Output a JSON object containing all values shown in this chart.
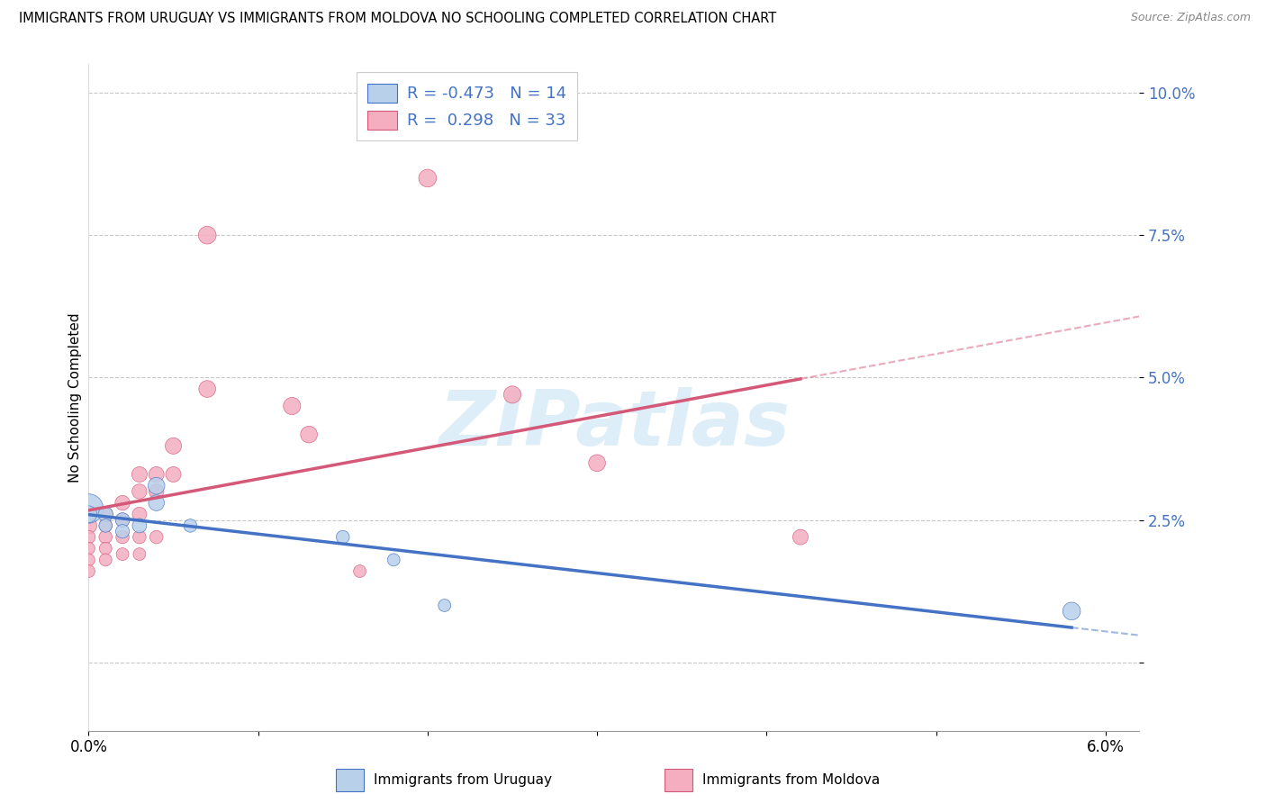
{
  "title": "IMMIGRANTS FROM URUGUAY VS IMMIGRANTS FROM MOLDOVA NO SCHOOLING COMPLETED CORRELATION CHART",
  "source": "Source: ZipAtlas.com",
  "ylabel": "No Schooling Completed",
  "legend_uruguay": "Immigrants from Uruguay",
  "legend_moldova": "Immigrants from Moldova",
  "R_uruguay": -0.473,
  "N_uruguay": 14,
  "R_moldova": 0.298,
  "N_moldova": 33,
  "uruguay_color": "#b8d0ea",
  "moldova_color": "#f4aec0",
  "trend_uruguay_color": "#4472c4",
  "trend_moldova_color": "#d45878",
  "watermark": "ZIPatlas",
  "watermark_color": "#ddeef8",
  "xlim": [
    0.0,
    0.062
  ],
  "ylim": [
    -0.012,
    0.105
  ],
  "yticks": [
    0.0,
    0.025,
    0.05,
    0.075,
    0.1
  ],
  "ytick_labels": [
    "",
    "2.5%",
    "5.0%",
    "7.5%",
    "10.0%"
  ],
  "xtick_positions": [
    0.0,
    0.06
  ],
  "xtick_labels": [
    "0.0%",
    "6.0%"
  ],
  "uruguay_x": [
    0.0,
    0.0,
    0.001,
    0.001,
    0.002,
    0.002,
    0.003,
    0.004,
    0.004,
    0.006,
    0.015,
    0.018,
    0.021,
    0.058
  ],
  "uruguay_y": [
    0.027,
    0.026,
    0.026,
    0.024,
    0.025,
    0.023,
    0.024,
    0.031,
    0.028,
    0.024,
    0.022,
    0.018,
    0.01,
    0.009
  ],
  "uruguay_s": [
    550,
    180,
    140,
    110,
    130,
    120,
    130,
    180,
    160,
    110,
    110,
    100,
    100,
    200
  ],
  "moldova_x": [
    0.0,
    0.0,
    0.0,
    0.0,
    0.0,
    0.001,
    0.001,
    0.001,
    0.001,
    0.001,
    0.002,
    0.002,
    0.002,
    0.002,
    0.003,
    0.003,
    0.003,
    0.003,
    0.003,
    0.004,
    0.004,
    0.004,
    0.005,
    0.005,
    0.007,
    0.007,
    0.012,
    0.013,
    0.016,
    0.02,
    0.025,
    0.03,
    0.042
  ],
  "moldova_y": [
    0.024,
    0.022,
    0.02,
    0.018,
    0.016,
    0.026,
    0.024,
    0.022,
    0.02,
    0.018,
    0.028,
    0.025,
    0.022,
    0.019,
    0.033,
    0.03,
    0.026,
    0.022,
    0.019,
    0.033,
    0.03,
    0.022,
    0.038,
    0.033,
    0.048,
    0.075,
    0.045,
    0.04,
    0.016,
    0.085,
    0.047,
    0.035,
    0.022
  ],
  "moldova_s": [
    170,
    110,
    100,
    100,
    100,
    130,
    110,
    110,
    100,
    100,
    140,
    120,
    110,
    100,
    150,
    140,
    130,
    110,
    100,
    150,
    140,
    110,
    170,
    150,
    180,
    200,
    190,
    180,
    100,
    200,
    190,
    180,
    150
  ]
}
